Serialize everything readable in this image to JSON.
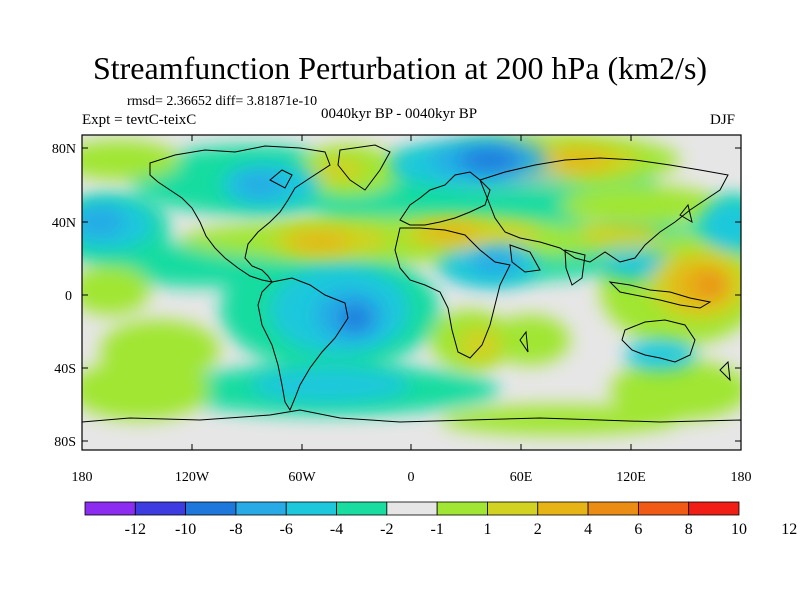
{
  "title": "Streamfunction Perturbation at 200 hPa (km2/s)",
  "stats": "rmsd= 2.36652 diff= 3.81871e-10",
  "experiment": "Expt = tevtC-teixC",
  "period": "0040kyr BP - 0040kyr BP",
  "season": "DJF",
  "map": {
    "lat_labels": [
      "80N",
      "40N",
      "0",
      "40S",
      "80S"
    ],
    "lon_labels": [
      "180",
      "120W",
      "60W",
      "0",
      "60E",
      "120E",
      "180"
    ]
  },
  "colorbar": {
    "colors": [
      "#8c2cf0",
      "#3c3ce0",
      "#1e78dc",
      "#28aae6",
      "#1ec8dc",
      "#18dca0",
      "#e6e6e6",
      "#a0e632",
      "#d2d222",
      "#e6b414",
      "#eb8c14",
      "#f05a14",
      "#f01e14"
    ],
    "labels": [
      "-12",
      "-10",
      "-8",
      "-6",
      "-4",
      "-2",
      "-1",
      "1",
      "2",
      "4",
      "6",
      "8",
      "10",
      "12"
    ]
  },
  "chart_data": {
    "type": "heatmap",
    "title": "Streamfunction Perturbation at 200 hPa (km2/s)",
    "xlabel": "",
    "ylabel": "",
    "xlim": [
      -180,
      180
    ],
    "ylim": [
      -90,
      90
    ],
    "levels": [
      -12,
      -10,
      -8,
      -6,
      -4,
      -2,
      -1,
      1,
      2,
      4,
      6,
      8,
      10,
      12
    ],
    "features": [
      {
        "lon": 40,
        "lat": 70,
        "value": -10
      },
      {
        "lon": -175,
        "lat": 40,
        "value": -7
      },
      {
        "lon": 180,
        "lat": 40,
        "value": -7
      },
      {
        "lon": -30,
        "lat": -10,
        "value": -9
      },
      {
        "lon": 45,
        "lat": 15,
        "value": -6
      },
      {
        "lon": -100,
        "lat": 60,
        "value": -5
      },
      {
        "lon": 0,
        "lat": 65,
        "value": -3
      },
      {
        "lon": -25,
        "lat": -45,
        "value": -3
      },
      {
        "lon": 120,
        "lat": 15,
        "value": -5
      },
      {
        "lon": 95,
        "lat": 65,
        "value": 3
      },
      {
        "lon": -60,
        "lat": 70,
        "value": 3
      },
      {
        "lon": 20,
        "lat": 35,
        "value": 5
      },
      {
        "lon": 95,
        "lat": 35,
        "value": 4
      },
      {
        "lon": 160,
        "lat": 10,
        "value": 6
      },
      {
        "lon": 35,
        "lat": -25,
        "value": 4
      },
      {
        "lon": -150,
        "lat": -45,
        "value": 3
      },
      {
        "lon": 90,
        "lat": -70,
        "value": 1
      }
    ]
  }
}
